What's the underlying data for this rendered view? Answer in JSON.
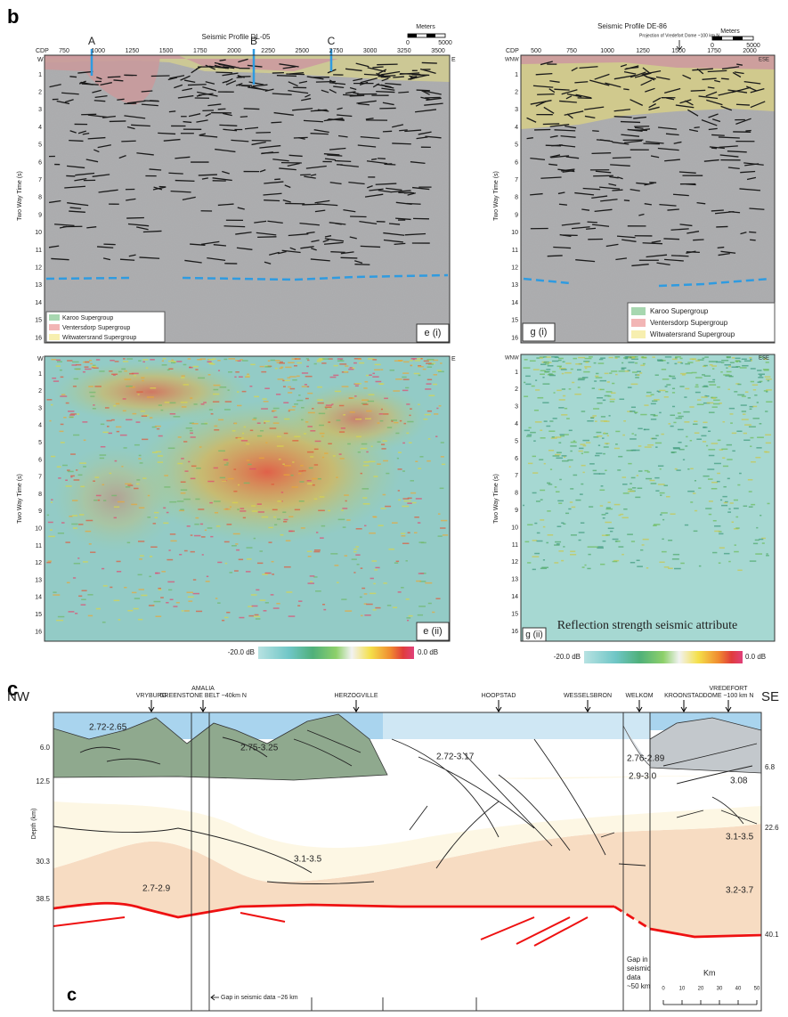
{
  "figure_labels": {
    "b": "b",
    "c": "c",
    "c_inner": "c"
  },
  "dl05": {
    "title": "Seismic Profile DL-05",
    "scale_unit": "Meters",
    "scale_ticks": [
      "0",
      "5000"
    ],
    "cdp_label": "CDP",
    "cdp_ticks": [
      "750",
      "1000",
      "1250",
      "1500",
      "1750",
      "2000",
      "2250",
      "2500",
      "2750",
      "3000",
      "3250",
      "3500"
    ],
    "wells": [
      "A",
      "B",
      "C"
    ],
    "left_end": "W",
    "right_end": "E",
    "y_label": "Two Way Time (s)",
    "time_ticks": [
      1,
      2,
      3,
      4,
      5,
      6,
      7,
      8,
      9,
      10,
      11,
      12,
      13,
      14,
      15,
      16
    ],
    "legend": [
      "Karoo Supergroup",
      "Ventersdorp Supergroup",
      "Witwatersrand Supergroup"
    ],
    "tag_i": "e (i)",
    "tag_ii": "e (ii)",
    "colorbar": [
      "-20.0 dB",
      "0.0 dB"
    ]
  },
  "de86": {
    "title": "Seismic Profile DE-86",
    "scale_unit": "Meters",
    "scale_ticks": [
      "0",
      "5000"
    ],
    "projection_note": "Projection of Vredefort Dome ~100 km N",
    "cdp_label": "CDP",
    "cdp_ticks": [
      "500",
      "750",
      "1000",
      "1250",
      "1500",
      "1750",
      "2000"
    ],
    "left_end": "WNW",
    "right_end": "ESE",
    "y_label": "Two Way Time (s)",
    "time_ticks": [
      1,
      2,
      3,
      4,
      5,
      6,
      7,
      8,
      9,
      10,
      11,
      12,
      13,
      14,
      15,
      16
    ],
    "legend": [
      "Karoo Supergroup",
      "Ventersdorp Supergroup",
      "Witwatersrand Supergroup"
    ],
    "tag_i": "g (i)",
    "tag_ii": "g (ii)",
    "attribute_title": "Reflection strength seismic attribute",
    "colorbar": [
      "-20.0 dB",
      "0.0 dB"
    ]
  },
  "cross_section": {
    "left_end": "NW",
    "right_end": "SE",
    "localities": [
      [
        "VRYBURG"
      ],
      [
        "AMALIA",
        "GREENSTONE BELT ~40km N"
      ],
      [
        "HERZOGVILLE"
      ],
      [
        "HOOPSTAD"
      ],
      [
        "WESSELSBRON"
      ],
      [
        "WELKOM"
      ],
      [
        "KROONSTAD"
      ],
      [
        "VREDEFORT",
        "DOME ~100 km N"
      ]
    ],
    "ages": [
      "2.72-2.65",
      "2.75-3.25",
      "2.72-3.17",
      "2.76-2.89",
      "2.9-3.0",
      "3.08",
      "3.1-3.5",
      "2.7-2.9",
      "3.1-3.5",
      "3.2-3.7"
    ],
    "y_label": "Depth (km)",
    "left_depths": [
      "6.0",
      "12.5",
      "30.3",
      "38.5"
    ],
    "right_depths": [
      "6.8",
      "22.6",
      "40.1"
    ],
    "gap_west": "Gap in seismic data ~26 km",
    "gap_east": [
      "Gap in",
      "seismic",
      "data",
      "~50 km"
    ],
    "scale_unit": "Km",
    "scale_ticks": [
      "0",
      "10",
      "20",
      "30",
      "40",
      "50"
    ]
  }
}
